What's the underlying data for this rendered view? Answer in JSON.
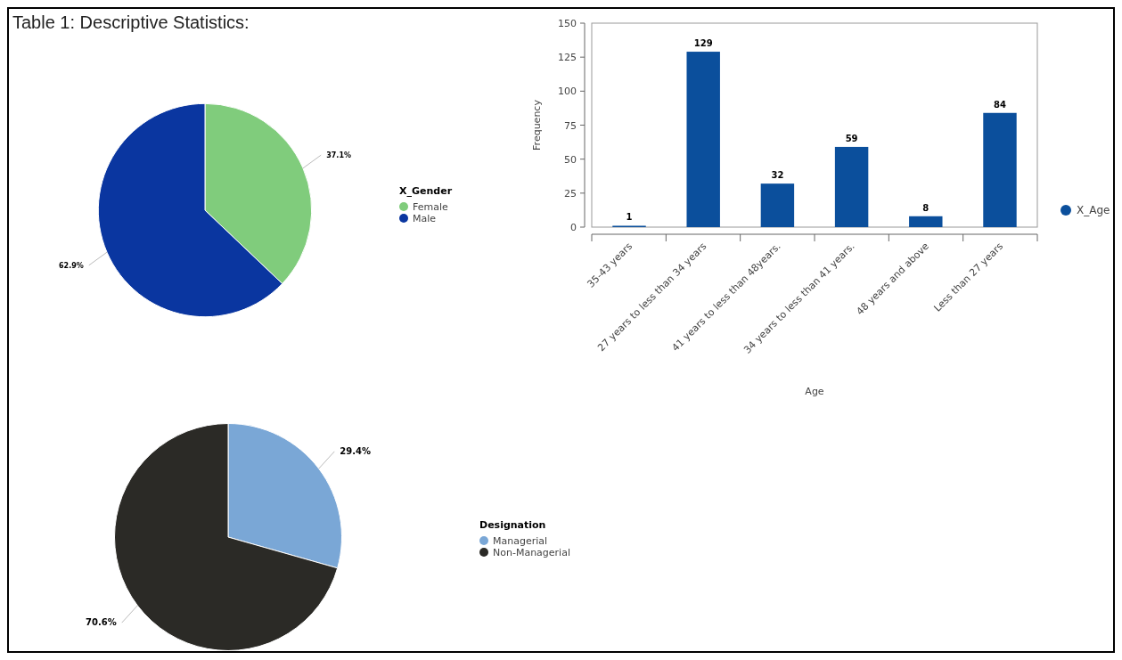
{
  "chart_data": [
    {
      "type": "pie",
      "title": "Table 1: Descriptive Statistics:",
      "legend_title": "X_Gender",
      "categories": [
        "Female",
        "Male"
      ],
      "values": [
        37.1,
        62.9
      ],
      "colors": [
        "#80cc7c",
        "#0a36a0"
      ],
      "value_labels": [
        "37.1%",
        "62.9%"
      ],
      "legend": "right"
    },
    {
      "type": "bar",
      "xlabel": "Age",
      "ylabel": "Frequency",
      "categories": [
        "35-43 years",
        "27 years to less than 34 years",
        "41 years to less than 48years.",
        "34 years to less than 41 years.",
        "48 years and above",
        "Less than 27 years"
      ],
      "series": [
        {
          "name": "X_Age",
          "color": "#0b4f9c",
          "values": [
            1,
            129,
            32,
            59,
            8,
            84
          ]
        }
      ],
      "ylim": [
        0,
        150
      ],
      "yticks": [
        0,
        25,
        50,
        75,
        100,
        125,
        150
      ],
      "data_labels": true,
      "legend": "right"
    },
    {
      "type": "pie",
      "legend_title": "Designation",
      "categories": [
        "Managerial",
        "Non-Managerial"
      ],
      "values": [
        29.4,
        70.6
      ],
      "colors": [
        "#7aa7d6",
        "#2b2a26"
      ],
      "value_labels": [
        "29.4%",
        "70.6%"
      ],
      "legend": "right"
    }
  ]
}
